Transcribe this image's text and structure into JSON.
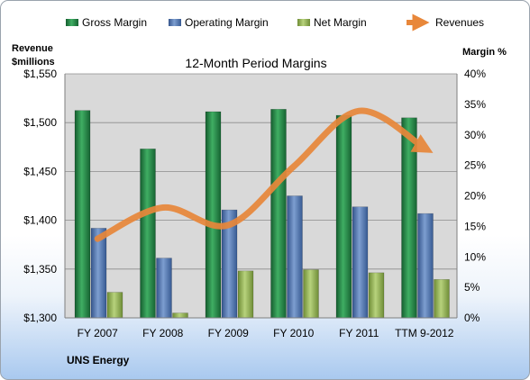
{
  "chart_data": {
    "type": "bar",
    "title": "12-Month Period Margins",
    "company": "UNS Energy",
    "categories": [
      "FY 2007",
      "FY 2008",
      "FY 2009",
      "FY 2010",
      "FY 2011",
      "TTM 9-2012"
    ],
    "left_axis": {
      "label_line1": "Revenue",
      "label_line2": "$millions",
      "ylim": [
        1300,
        1550
      ],
      "ticks": [
        "$1,300",
        "$1,350",
        "$1,400",
        "$1,450",
        "$1,500",
        "$1,550"
      ]
    },
    "right_axis": {
      "label": "Margin %",
      "ylim": [
        0,
        40
      ],
      "ticks": [
        "0%",
        "5%",
        "10%",
        "15%",
        "20%",
        "25%",
        "30%",
        "35%",
        "40%"
      ]
    },
    "series": [
      {
        "name": "Gross Margin",
        "axis": "right",
        "kind": "bar",
        "color": "#2e8b4e",
        "values": [
          34.0,
          27.7,
          33.8,
          34.2,
          33.2,
          32.8
        ]
      },
      {
        "name": "Operating Margin",
        "axis": "right",
        "kind": "bar",
        "color": "#5577ad",
        "values": [
          14.7,
          9.8,
          17.7,
          20.0,
          18.2,
          17.1
        ]
      },
      {
        "name": "Net Margin",
        "axis": "right",
        "kind": "bar",
        "color": "#95b55a",
        "values": [
          4.2,
          0.8,
          7.7,
          7.9,
          7.4,
          6.3
        ]
      },
      {
        "name": "Revenues",
        "axis": "left",
        "kind": "line",
        "color": "#e8873a",
        "values": [
          1381,
          1413,
          1395,
          1455,
          1512,
          1474
        ]
      }
    ],
    "grid": true,
    "legend_position": "top"
  }
}
